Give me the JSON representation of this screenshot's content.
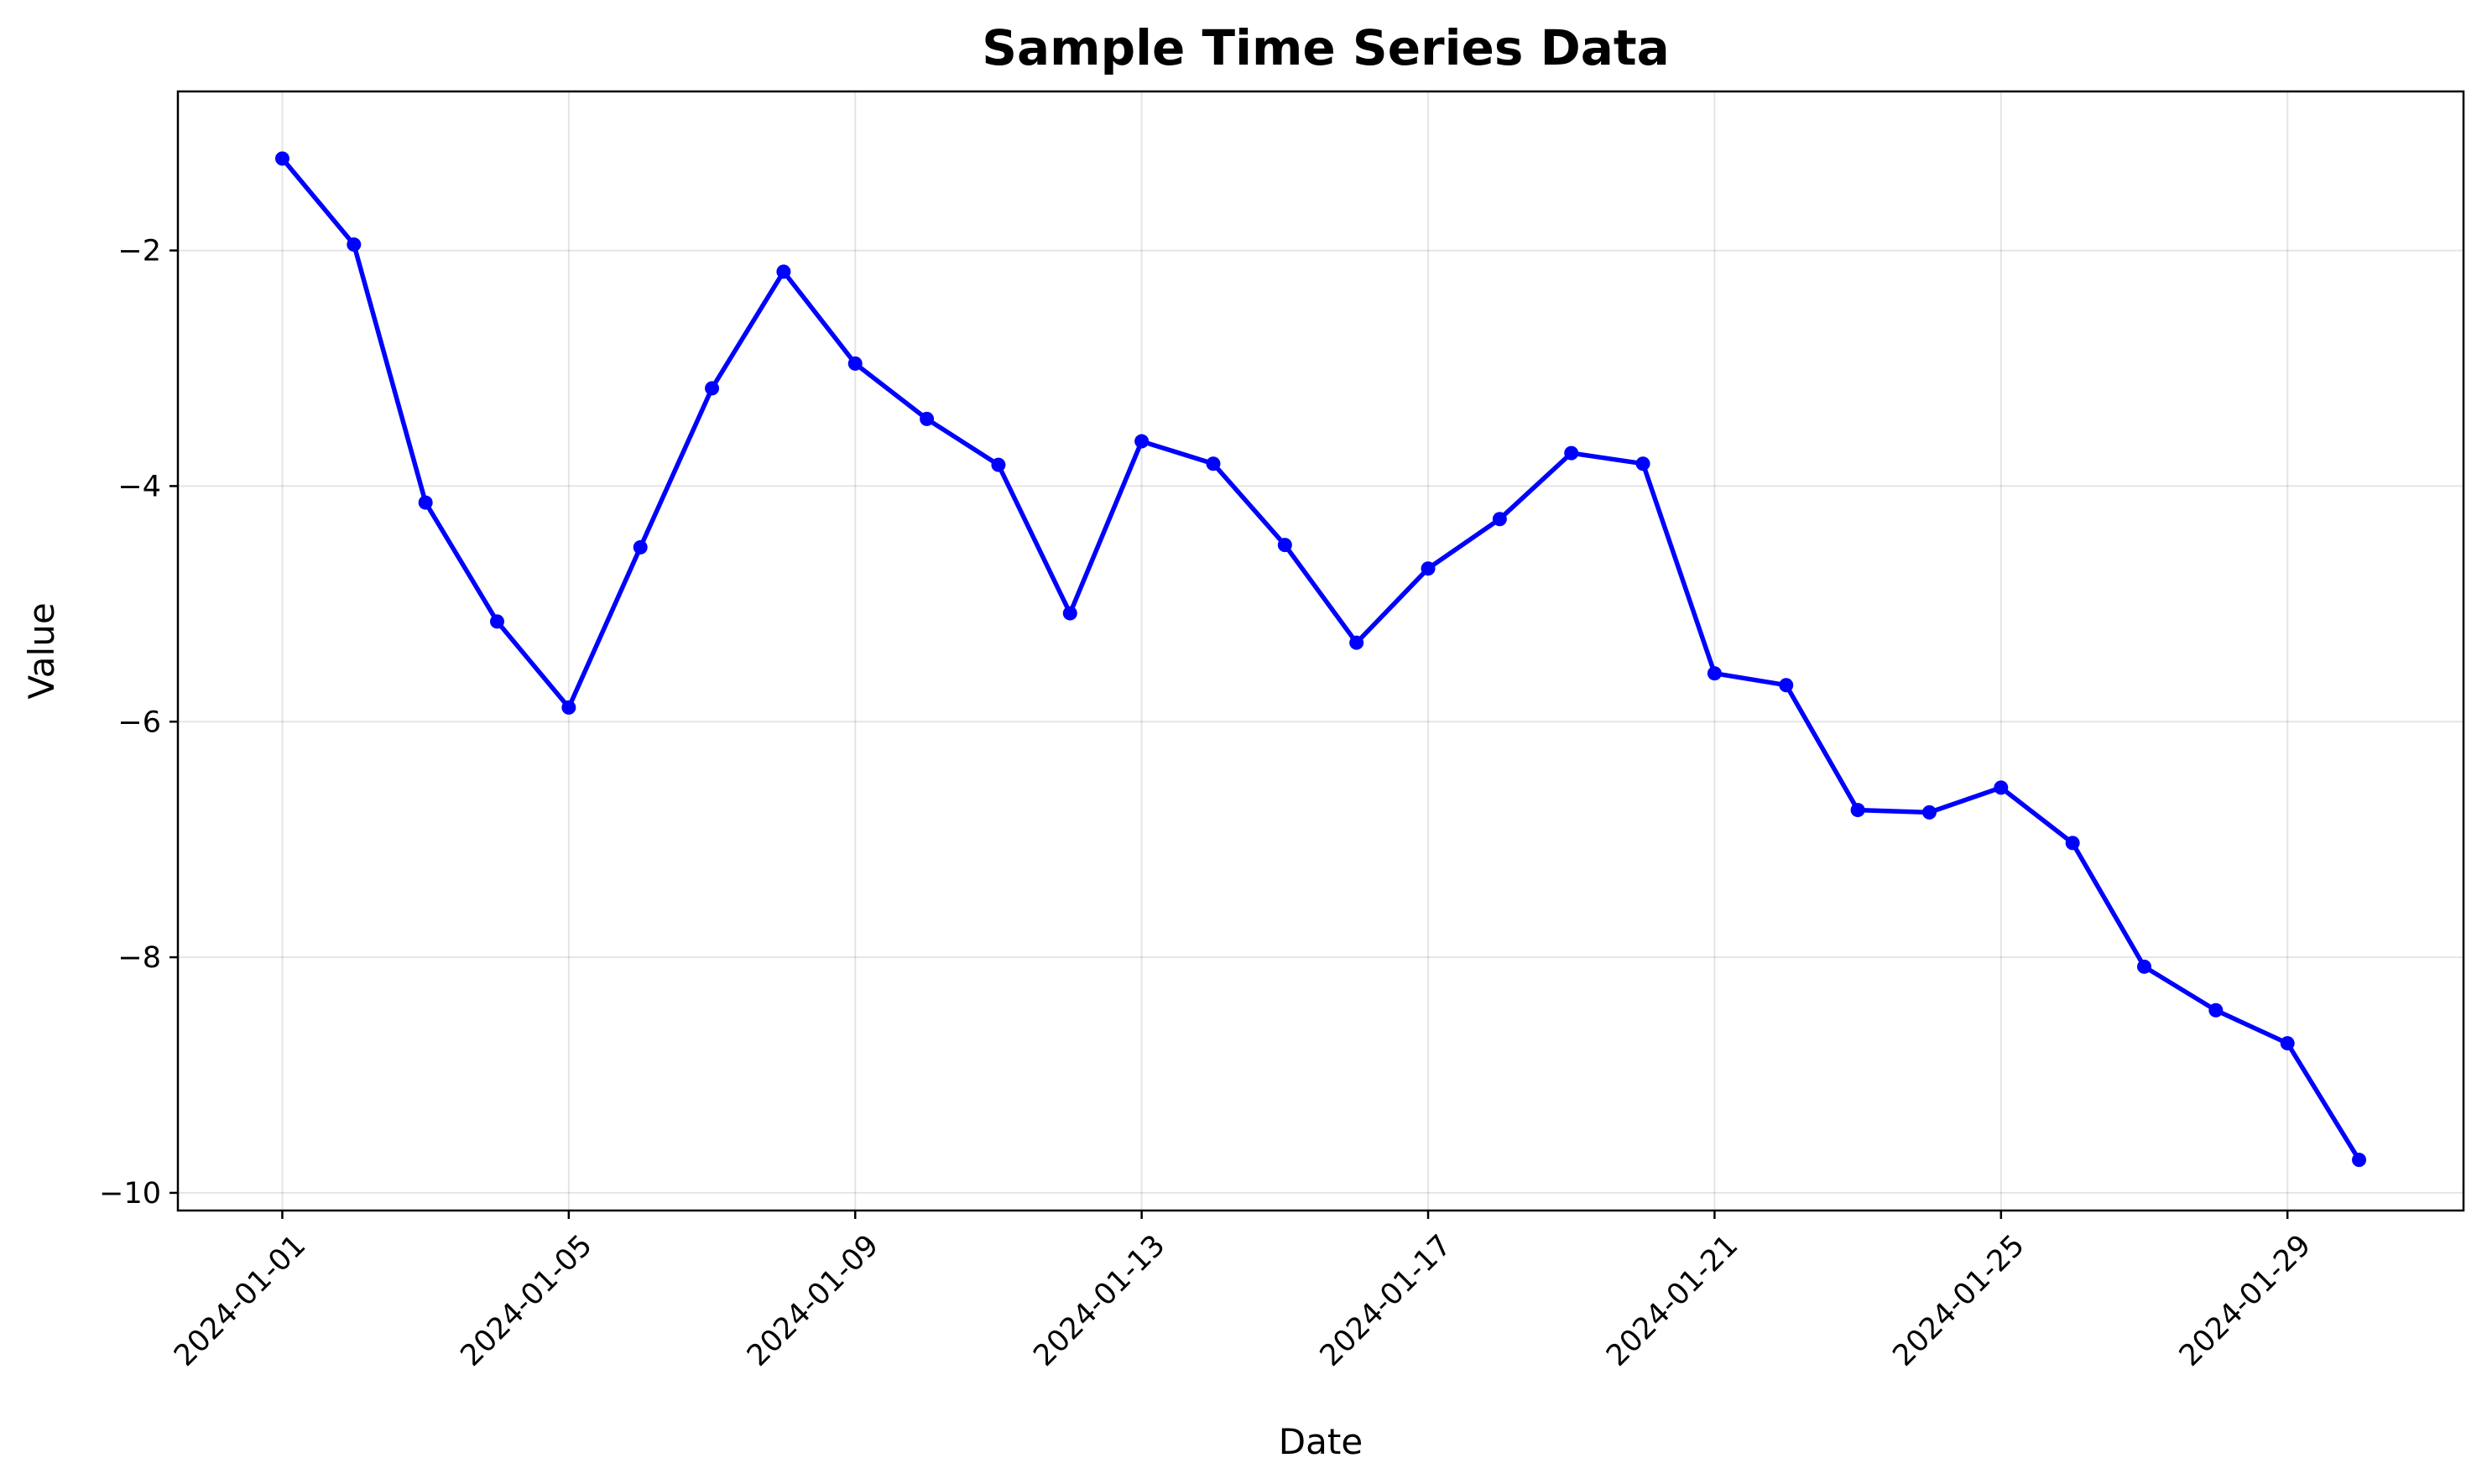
{
  "chart_data": {
    "type": "line",
    "title": "Sample Time Series Data",
    "xlabel": "Date",
    "ylabel": "Value",
    "x_type": "date",
    "xlim": [
      "2023-12-30T13:00:00",
      "2024-01-31T11:00:00"
    ],
    "ylim": [
      -10.15,
      -0.65
    ],
    "x_ticks": [
      "2024-01-01",
      "2024-01-05",
      "2024-01-09",
      "2024-01-13",
      "2024-01-17",
      "2024-01-21",
      "2024-01-25",
      "2024-01-29"
    ],
    "y_ticks": [
      -2,
      -4,
      -6,
      -8,
      -10
    ],
    "grid": true,
    "x": [
      "2024-01-01",
      "2024-01-02",
      "2024-01-03",
      "2024-01-04",
      "2024-01-05",
      "2024-01-06",
      "2024-01-07",
      "2024-01-08",
      "2024-01-09",
      "2024-01-10",
      "2024-01-11",
      "2024-01-12",
      "2024-01-13",
      "2024-01-14",
      "2024-01-15",
      "2024-01-16",
      "2024-01-17",
      "2024-01-18",
      "2024-01-19",
      "2024-01-20",
      "2024-01-21",
      "2024-01-22",
      "2024-01-23",
      "2024-01-24",
      "2024-01-25",
      "2024-01-26",
      "2024-01-27",
      "2024-01-28",
      "2024-01-29",
      "2024-01-30"
    ],
    "series": [
      {
        "color": "#0000ff",
        "marker": "circle",
        "values": [
          -1.22,
          -1.95,
          -4.14,
          -5.15,
          -5.88,
          -4.52,
          -3.17,
          -2.18,
          -2.96,
          -3.43,
          -3.82,
          -5.08,
          -3.62,
          -3.81,
          -4.5,
          -5.33,
          -4.7,
          -4.28,
          -3.72,
          -3.81,
          -5.59,
          -5.69,
          -6.75,
          -6.77,
          -6.56,
          -7.03,
          -8.08,
          -8.45,
          -8.73,
          -9.72
        ]
      }
    ]
  }
}
